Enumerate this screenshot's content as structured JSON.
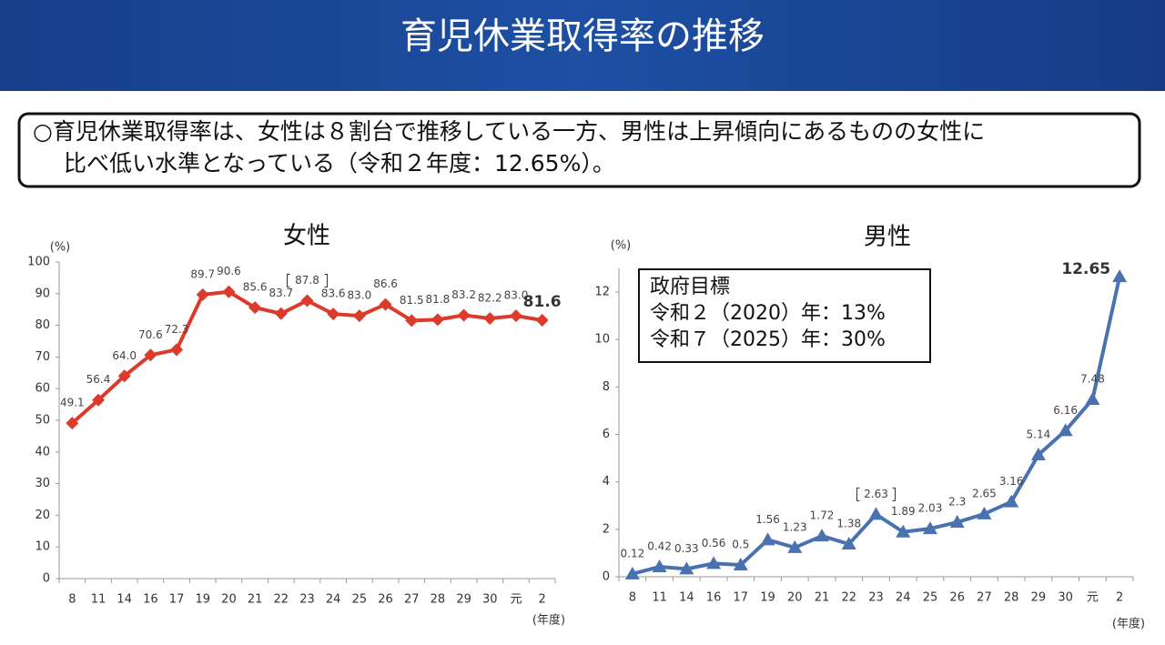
{
  "header": {
    "title": "育児休業取得率の推移"
  },
  "summary": [
    "○育児休業取得率は、女性は８割台で推移している一方、男性は上昇傾向にあるものの女性に",
    "比べ低い水準となっている（令和２年度：12.65%）。"
  ],
  "chart_data": [
    {
      "type": "line",
      "title": "女性",
      "y_unit": "(%)",
      "x_unit": "(年度)",
      "color": "#dc3a2a",
      "marker": "diamond",
      "categories": [
        "8",
        "11",
        "14",
        "16",
        "17",
        "19",
        "20",
        "21",
        "22",
        "23",
        "24",
        "25",
        "26",
        "27",
        "28",
        "29",
        "30",
        "元",
        "2"
      ],
      "values": [
        49.1,
        56.4,
        64.0,
        70.6,
        72.3,
        89.7,
        90.6,
        85.6,
        83.7,
        87.8,
        83.6,
        83.0,
        86.6,
        81.5,
        81.8,
        83.2,
        82.2,
        83.0,
        81.6
      ],
      "value_labels": [
        "49.1",
        "56.4",
        "64.0",
        "70.6",
        "72.3",
        "89.7",
        "90.6",
        "85.6",
        "83.7",
        "87.8",
        "83.6",
        "83.0",
        "86.6",
        "81.5",
        "81.8",
        "83.2",
        "82.2",
        "83.0",
        "81.6"
      ],
      "ylim": [
        0,
        100
      ],
      "yticks": [
        0,
        10,
        20,
        30,
        40,
        50,
        60,
        70,
        80,
        90,
        100
      ]
    },
    {
      "type": "line",
      "title": "男性",
      "y_unit": "(%)",
      "x_unit": "(年度)",
      "color": "#4a72b0",
      "marker": "triangle",
      "categories": [
        "8",
        "11",
        "14",
        "16",
        "17",
        "19",
        "20",
        "21",
        "22",
        "23",
        "24",
        "25",
        "26",
        "27",
        "28",
        "29",
        "30",
        "元",
        "2"
      ],
      "values": [
        0.12,
        0.42,
        0.33,
        0.56,
        0.5,
        1.56,
        1.23,
        1.72,
        1.38,
        2.63,
        1.89,
        2.03,
        2.3,
        2.65,
        3.16,
        5.14,
        6.16,
        7.48,
        12.65
      ],
      "ylim": [
        0,
        13
      ],
      "yticks": [
        0,
        2,
        4,
        6,
        8,
        10,
        12
      ],
      "annotation": [
        "政府目標",
        "令和２（2020）年：13%",
        "令和７（2025）年：30%"
      ]
    }
  ]
}
